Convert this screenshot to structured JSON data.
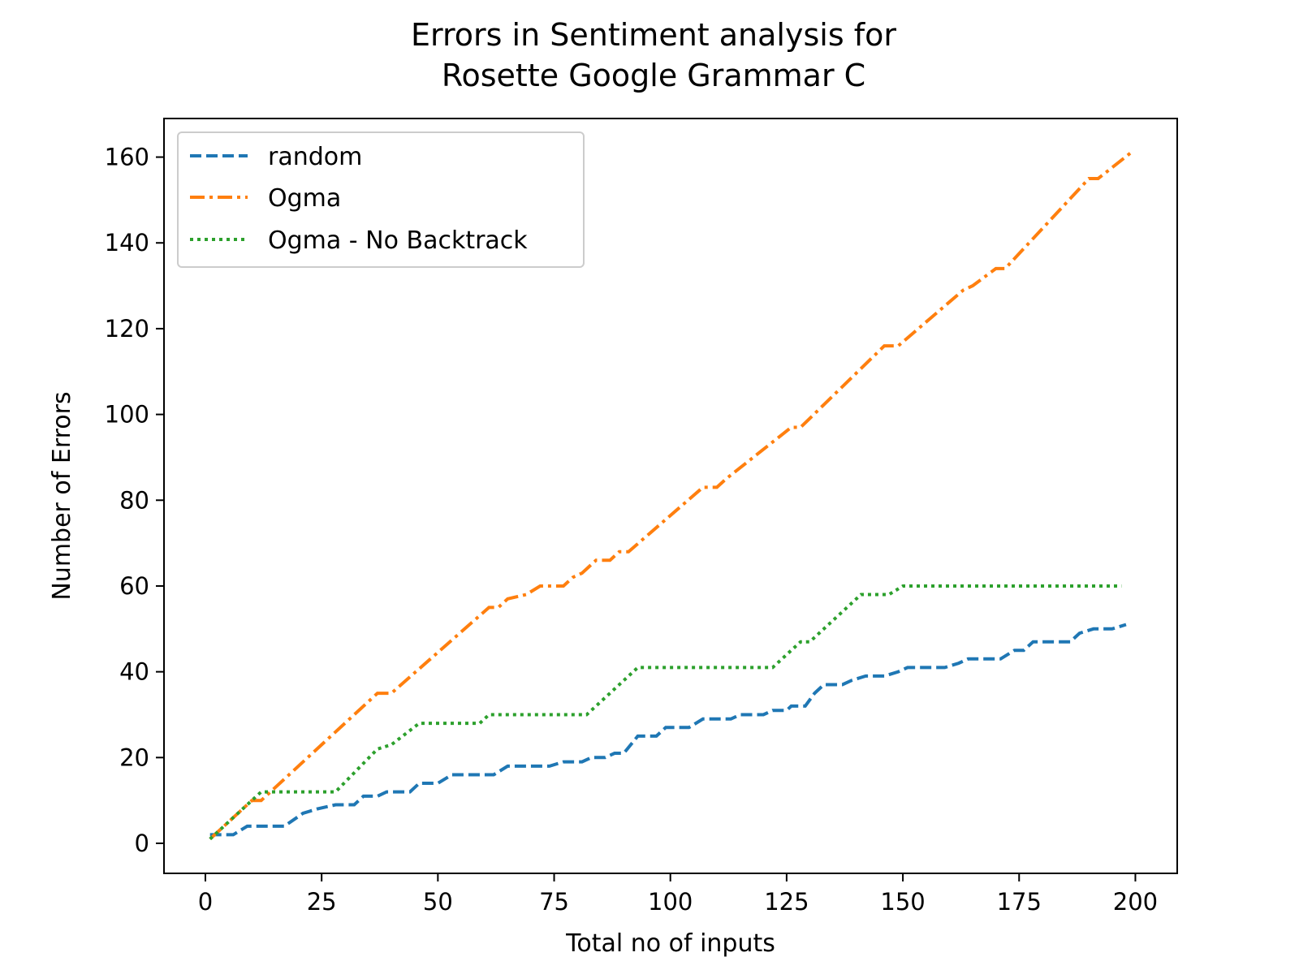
{
  "chart_data": {
    "type": "line",
    "title_lines": [
      "Errors in Sentiment analysis for",
      "Rosette Google Grammar C"
    ],
    "xlabel": "Total no of inputs",
    "ylabel": "Number of Errors",
    "xlim": [
      -8.9,
      209
    ],
    "ylim": [
      -7,
      169
    ],
    "xticks": [
      0,
      25,
      50,
      75,
      100,
      125,
      150,
      175,
      200
    ],
    "yticks": [
      0,
      20,
      40,
      60,
      80,
      100,
      120,
      140,
      160
    ],
    "grid": false,
    "legend_position": "top-left",
    "series": [
      {
        "name": "random",
        "color": "#1f77b4",
        "dash": "dashed",
        "points": [
          [
            1,
            2
          ],
          [
            6,
            2
          ],
          [
            9,
            4
          ],
          [
            17,
            4
          ],
          [
            21,
            7
          ],
          [
            24,
            8
          ],
          [
            28,
            9
          ],
          [
            32,
            9
          ],
          [
            34,
            11
          ],
          [
            37,
            11
          ],
          [
            39,
            12
          ],
          [
            44,
            12
          ],
          [
            46,
            14
          ],
          [
            50,
            14
          ],
          [
            53,
            16
          ],
          [
            62,
            16
          ],
          [
            65,
            18
          ],
          [
            74,
            18
          ],
          [
            77,
            19
          ],
          [
            81,
            19
          ],
          [
            83,
            20
          ],
          [
            86,
            20
          ],
          [
            88,
            21
          ],
          [
            90,
            21
          ],
          [
            93,
            25
          ],
          [
            97,
            25
          ],
          [
            99,
            27
          ],
          [
            104,
            27
          ],
          [
            107,
            29
          ],
          [
            113,
            29
          ],
          [
            115,
            30
          ],
          [
            120,
            30
          ],
          [
            122,
            31
          ],
          [
            125,
            31
          ],
          [
            126,
            32
          ],
          [
            129,
            32
          ],
          [
            131,
            35
          ],
          [
            133,
            37
          ],
          [
            137,
            37
          ],
          [
            139,
            38
          ],
          [
            142,
            39
          ],
          [
            146,
            39
          ],
          [
            149,
            40
          ],
          [
            151,
            41
          ],
          [
            159,
            41
          ],
          [
            162,
            42
          ],
          [
            164,
            43
          ],
          [
            171,
            43
          ],
          [
            174,
            45
          ],
          [
            176,
            45
          ],
          [
            178,
            47
          ],
          [
            186,
            47
          ],
          [
            188,
            49
          ],
          [
            191,
            50
          ],
          [
            195,
            50
          ],
          [
            198,
            51
          ]
        ]
      },
      {
        "name": "Ogma",
        "color": "#ff7f0e",
        "dash": "dashdot",
        "points": [
          [
            1,
            1
          ],
          [
            10,
            10
          ],
          [
            12,
            10
          ],
          [
            37,
            35
          ],
          [
            40,
            35
          ],
          [
            61,
            55
          ],
          [
            63,
            55
          ],
          [
            65,
            57
          ],
          [
            69,
            58
          ],
          [
            72,
            60
          ],
          [
            77,
            60
          ],
          [
            79,
            62
          ],
          [
            81,
            63
          ],
          [
            84,
            66
          ],
          [
            87,
            66
          ],
          [
            89,
            68
          ],
          [
            91,
            68
          ],
          [
            107,
            83
          ],
          [
            110,
            83
          ],
          [
            112,
            85
          ],
          [
            126,
            97
          ],
          [
            128,
            97
          ],
          [
            146,
            116
          ],
          [
            149,
            116
          ],
          [
            163,
            129
          ],
          [
            165,
            130
          ],
          [
            170,
            134
          ],
          [
            172,
            134
          ],
          [
            190,
            155
          ],
          [
            192,
            155
          ],
          [
            199,
            161
          ]
        ]
      },
      {
        "name": "Ogma - No Backtrack",
        "color": "#2ca02c",
        "dash": "dotted",
        "points": [
          [
            1,
            1
          ],
          [
            12,
            12
          ],
          [
            28,
            12
          ],
          [
            37,
            22
          ],
          [
            40,
            23
          ],
          [
            46,
            28
          ],
          [
            59,
            28
          ],
          [
            61,
            30
          ],
          [
            82,
            30
          ],
          [
            86,
            34
          ],
          [
            93,
            41
          ],
          [
            122,
            41
          ],
          [
            124,
            43
          ],
          [
            128,
            47
          ],
          [
            130,
            47
          ],
          [
            141,
            58
          ],
          [
            147,
            58
          ],
          [
            150,
            60
          ],
          [
            197,
            60
          ]
        ]
      }
    ]
  }
}
